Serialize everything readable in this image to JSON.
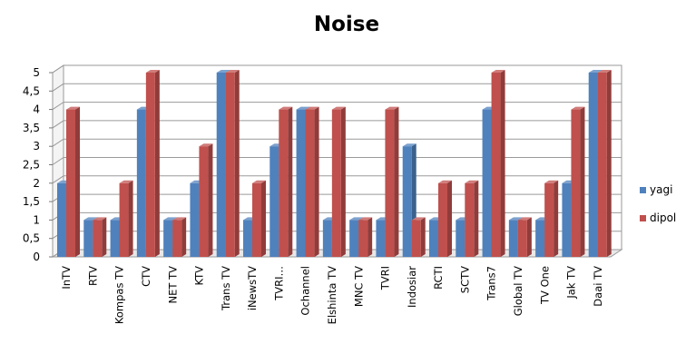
{
  "chart_data": {
    "type": "bar",
    "title": "Noise",
    "xlabel": "",
    "ylabel": "",
    "ylim": [
      0,
      5
    ],
    "yticks": [
      "0",
      "0,5",
      "1",
      "1,5",
      "2",
      "2,5",
      "3",
      "3,5",
      "4",
      "4,5",
      "5"
    ],
    "categories": [
      "InTV",
      "RTV",
      "Kompas TV",
      "CTV",
      "NET TV",
      "KTV",
      "Trans TV",
      "iNewsTV",
      "TVRI…",
      "Ochannel",
      "Elshinta TV",
      "MNC TV",
      "TVRI",
      "Indosiar",
      "RCTI",
      "SCTV",
      "Trans7",
      "Global TV",
      "TV One",
      "Jak TV",
      "Daai TV"
    ],
    "series": [
      {
        "name": "yagi",
        "color": "#4f81bd",
        "values": [
          2,
          1,
          1,
          4,
          1,
          2,
          5,
          1,
          3,
          4,
          1,
          1,
          1,
          3,
          1,
          1,
          4,
          1,
          1,
          2,
          5
        ]
      },
      {
        "name": "dipol",
        "color": "#c0504d",
        "values": [
          4,
          1,
          2,
          5,
          1,
          3,
          5,
          2,
          4,
          4,
          4,
          1,
          4,
          1,
          2,
          2,
          5,
          1,
          2,
          4,
          5
        ]
      }
    ],
    "grid": true,
    "legend_position": "right"
  }
}
